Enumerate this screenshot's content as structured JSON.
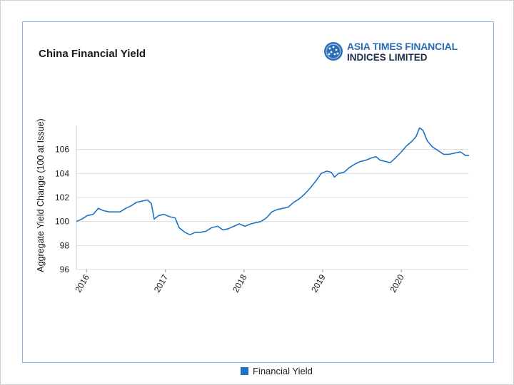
{
  "header": {
    "title": "China Financial Yield",
    "logo_line1": "ASIA TIMES FINANCIAL",
    "logo_line2": "INDICES LIMITED"
  },
  "legend": {
    "label": "Financial Yield",
    "color": "#1a73c8"
  },
  "chart_data": {
    "type": "line",
    "title": "China Financial Yield",
    "xlabel": "",
    "ylabel": "Aggregate Yield Change (100 at Issue)",
    "ylim": [
      96,
      108
    ],
    "xlim": [
      "2015-11-15",
      "2020-11-10"
    ],
    "yticks": [
      96,
      98,
      100,
      102,
      104,
      106
    ],
    "xticks": [
      "2016",
      "2017",
      "2018",
      "2019",
      "2020"
    ],
    "grid": "horizontal",
    "legend_position": "bottom",
    "series": [
      {
        "name": "Financial Yield",
        "color": "#1a73c8",
        "points": [
          [
            "2015-11-15",
            100.0
          ],
          [
            "2015-12-10",
            100.2
          ],
          [
            "2016-01-05",
            100.5
          ],
          [
            "2016-02-01",
            100.6
          ],
          [
            "2016-02-25",
            101.1
          ],
          [
            "2016-03-20",
            100.9
          ],
          [
            "2016-04-15",
            100.8
          ],
          [
            "2016-05-10",
            100.8
          ],
          [
            "2016-06-05",
            100.8
          ],
          [
            "2016-07-01",
            101.1
          ],
          [
            "2016-07-25",
            101.3
          ],
          [
            "2016-08-20",
            101.6
          ],
          [
            "2016-09-15",
            101.7
          ],
          [
            "2016-10-10",
            101.8
          ],
          [
            "2016-10-28",
            101.5
          ],
          [
            "2016-11-10",
            100.2
          ],
          [
            "2016-12-01",
            100.5
          ],
          [
            "2016-12-25",
            100.6
          ],
          [
            "2017-01-20",
            100.4
          ],
          [
            "2017-02-15",
            100.3
          ],
          [
            "2017-03-05",
            99.5
          ],
          [
            "2017-04-01",
            99.1
          ],
          [
            "2017-04-25",
            98.9
          ],
          [
            "2017-05-20",
            99.1
          ],
          [
            "2017-06-15",
            99.1
          ],
          [
            "2017-07-10",
            99.2
          ],
          [
            "2017-08-05",
            99.5
          ],
          [
            "2017-09-01",
            99.6
          ],
          [
            "2017-09-25",
            99.3
          ],
          [
            "2017-10-20",
            99.4
          ],
          [
            "2017-11-15",
            99.6
          ],
          [
            "2017-12-10",
            99.8
          ],
          [
            "2018-01-05",
            99.6
          ],
          [
            "2018-02-01",
            99.8
          ],
          [
            "2018-02-25",
            99.9
          ],
          [
            "2018-03-20",
            100.0
          ],
          [
            "2018-04-15",
            100.3
          ],
          [
            "2018-05-10",
            100.8
          ],
          [
            "2018-06-05",
            101.0
          ],
          [
            "2018-07-01",
            101.1
          ],
          [
            "2018-07-25",
            101.2
          ],
          [
            "2018-08-20",
            101.6
          ],
          [
            "2018-09-15",
            101.9
          ],
          [
            "2018-10-10",
            102.3
          ],
          [
            "2018-11-05",
            102.8
          ],
          [
            "2018-12-01",
            103.4
          ],
          [
            "2018-12-25",
            104.0
          ],
          [
            "2019-01-20",
            104.2
          ],
          [
            "2019-02-10",
            104.1
          ],
          [
            "2019-02-25",
            103.7
          ],
          [
            "2019-03-15",
            104.0
          ],
          [
            "2019-04-10",
            104.1
          ],
          [
            "2019-05-05",
            104.5
          ],
          [
            "2019-06-01",
            104.8
          ],
          [
            "2019-06-25",
            105.0
          ],
          [
            "2019-07-20",
            105.1
          ],
          [
            "2019-08-15",
            105.3
          ],
          [
            "2019-09-05",
            105.4
          ],
          [
            "2019-09-25",
            105.1
          ],
          [
            "2019-10-20",
            105.0
          ],
          [
            "2019-11-10",
            104.9
          ],
          [
            "2019-12-05",
            105.3
          ],
          [
            "2020-01-01",
            105.8
          ],
          [
            "2020-01-25",
            106.3
          ],
          [
            "2020-02-20",
            106.7
          ],
          [
            "2020-03-10",
            107.1
          ],
          [
            "2020-03-25",
            107.8
          ],
          [
            "2020-04-10",
            107.6
          ],
          [
            "2020-05-01",
            106.7
          ],
          [
            "2020-05-25",
            106.2
          ],
          [
            "2020-06-20",
            105.9
          ],
          [
            "2020-07-15",
            105.6
          ],
          [
            "2020-08-10",
            105.6
          ],
          [
            "2020-09-05",
            105.7
          ],
          [
            "2020-10-01",
            105.8
          ],
          [
            "2020-10-25",
            105.5
          ],
          [
            "2020-11-10",
            105.5
          ]
        ]
      }
    ]
  }
}
